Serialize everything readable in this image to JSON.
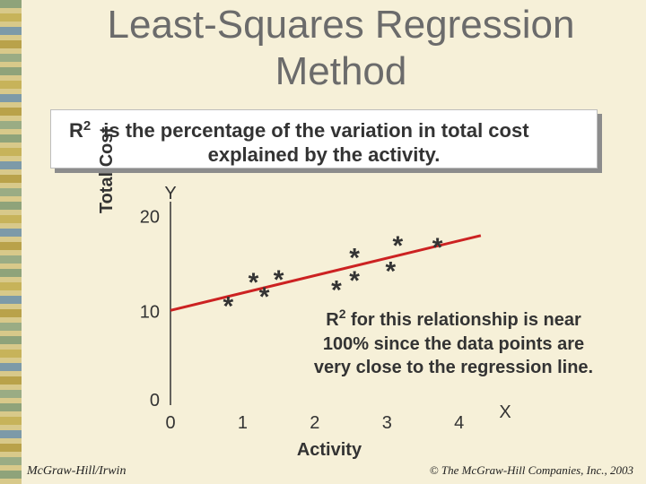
{
  "slide": {
    "title_line1": "Least-Squares Regression",
    "title_line2": "Method",
    "definition": {
      "r": "R",
      "sup": "2",
      "text_line1": "is the percentage  of the variation in total cost",
      "text_line2": "explained by the activity."
    },
    "note": {
      "r": "R",
      "sup": "2",
      "line1": "for this relationship is near",
      "line2": "100% since the data points are",
      "line3": "very close to the regression line."
    },
    "footer_left": "McGraw-Hill/Irwin",
    "footer_right": "© The McGraw-Hill Companies, Inc., 2003"
  },
  "chart_data": {
    "type": "scatter",
    "xlabel": "Activity",
    "ylabel": "Total Cost",
    "x_axis_letter": "X",
    "y_axis_letter": "Y",
    "x_ticks": [
      "0",
      "1",
      "2",
      "3",
      "4"
    ],
    "y_ticks": [
      "0",
      "10",
      "20"
    ],
    "xlim": [
      0,
      4.6
    ],
    "ylim": [
      0,
      21
    ],
    "marker": "*",
    "points": [
      {
        "x": 0.8,
        "y": 11.1
      },
      {
        "x": 1.15,
        "y": 13.6
      },
      {
        "x": 1.3,
        "y": 12.1
      },
      {
        "x": 1.5,
        "y": 13.9
      },
      {
        "x": 2.3,
        "y": 12.8
      },
      {
        "x": 2.55,
        "y": 13.8
      },
      {
        "x": 2.55,
        "y": 16.2
      },
      {
        "x": 3.05,
        "y": 14.8
      },
      {
        "x": 3.15,
        "y": 17.5
      },
      {
        "x": 3.7,
        "y": 17.3
      }
    ],
    "regression_line": {
      "x": [
        0,
        4.3
      ],
      "y": [
        10.0,
        17.9
      ],
      "color": "#cc2222"
    },
    "axis_color": "#333333"
  }
}
